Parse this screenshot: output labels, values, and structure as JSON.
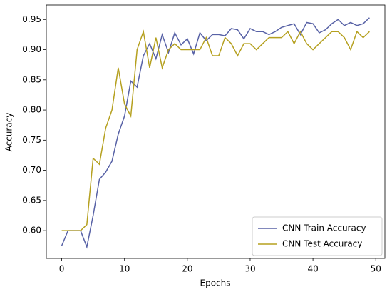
{
  "chart_data": {
    "type": "line",
    "xlabel": "Epochs",
    "ylabel": "Accuracy",
    "x": [
      0,
      1,
      2,
      3,
      4,
      5,
      6,
      7,
      8,
      9,
      10,
      11,
      12,
      13,
      14,
      15,
      16,
      17,
      18,
      19,
      20,
      21,
      22,
      23,
      24,
      25,
      26,
      27,
      28,
      29,
      30,
      31,
      32,
      33,
      34,
      35,
      36,
      37,
      38,
      39,
      40,
      41,
      42,
      43,
      44,
      45,
      46,
      47,
      48,
      49
    ],
    "series": [
      {
        "name": "CNN Train Accuracy",
        "color": "#5862a6",
        "values": [
          0.575,
          0.6,
          0.6,
          0.6,
          0.573,
          0.625,
          0.685,
          0.697,
          0.715,
          0.76,
          0.79,
          0.848,
          0.838,
          0.89,
          0.91,
          0.885,
          0.925,
          0.895,
          0.928,
          0.908,
          0.918,
          0.893,
          0.928,
          0.915,
          0.925,
          0.925,
          0.923,
          0.935,
          0.933,
          0.918,
          0.935,
          0.93,
          0.93,
          0.925,
          0.93,
          0.937,
          0.94,
          0.943,
          0.925,
          0.945,
          0.943,
          0.928,
          0.933,
          0.943,
          0.95,
          0.94,
          0.945,
          0.94,
          0.943,
          0.953
        ]
      },
      {
        "name": "CNN Test Accuracy",
        "color": "#b5a01f",
        "values": [
          0.6,
          0.6,
          0.6,
          0.6,
          0.61,
          0.72,
          0.71,
          0.77,
          0.8,
          0.87,
          0.81,
          0.79,
          0.9,
          0.93,
          0.87,
          0.92,
          0.87,
          0.9,
          0.91,
          0.9,
          0.9,
          0.9,
          0.9,
          0.92,
          0.89,
          0.89,
          0.92,
          0.91,
          0.89,
          0.91,
          0.91,
          0.9,
          0.91,
          0.92,
          0.92,
          0.92,
          0.93,
          0.91,
          0.93,
          0.91,
          0.9,
          0.91,
          0.92,
          0.93,
          0.93,
          0.92,
          0.9,
          0.93,
          0.92,
          0.93
        ]
      }
    ],
    "xlim": [
      -2.45,
      51.45
    ],
    "xticks": [
      0,
      10,
      20,
      30,
      40,
      50
    ],
    "ylim": [
      0.554,
      0.974
    ],
    "yticks": [
      {
        "value": 0.6,
        "label": "0.60"
      },
      {
        "value": 0.65,
        "label": "0.65"
      },
      {
        "value": 0.7,
        "label": "0.70"
      },
      {
        "value": 0.75,
        "label": "0.75"
      },
      {
        "value": 0.8,
        "label": "0.80"
      },
      {
        "value": 0.85,
        "label": "0.85"
      },
      {
        "value": 0.9,
        "label": "0.90"
      },
      {
        "value": 0.95,
        "label": "0.95"
      }
    ],
    "legend": "lower right"
  }
}
